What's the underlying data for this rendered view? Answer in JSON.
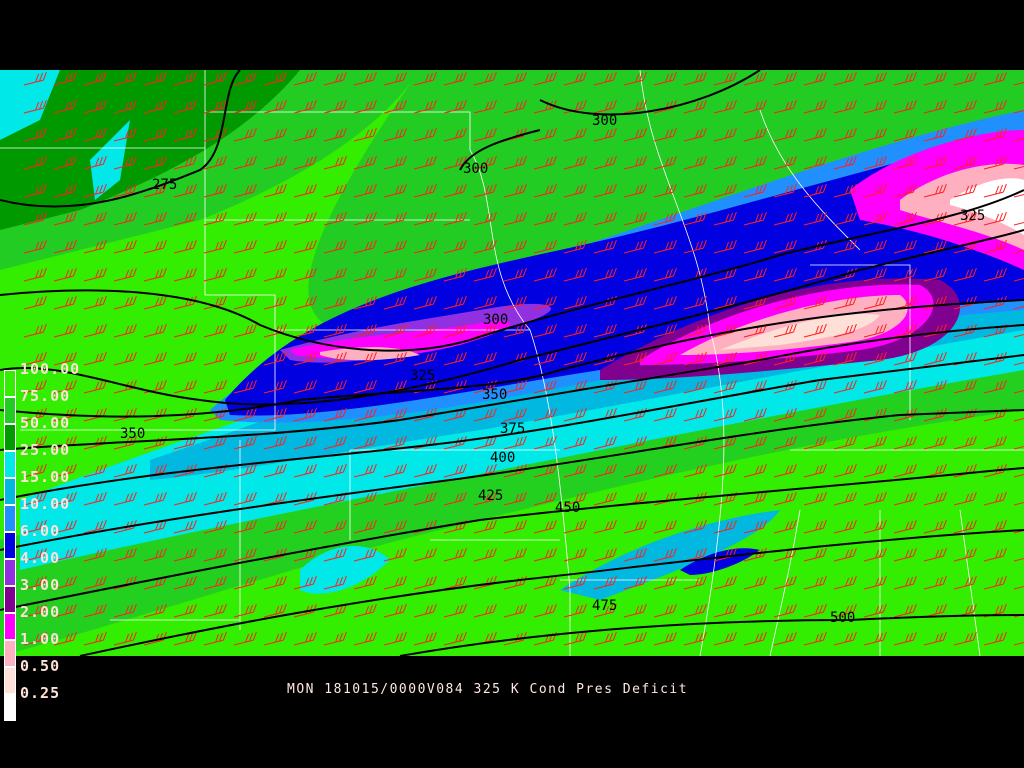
{
  "title": "MON 181015/0000V084 325 K Cond Pres Deficit",
  "legend": [
    {
      "label": "100.00",
      "color": "#33ee00"
    },
    {
      "label": "75.00",
      "color": "#22cc22"
    },
    {
      "label": "50.00",
      "color": "#009900"
    },
    {
      "label": "25.00",
      "color": "#00e8e8"
    },
    {
      "label": "15.00",
      "color": "#00b8e0"
    },
    {
      "label": "10.00",
      "color": "#2090ff"
    },
    {
      "label": "6.00",
      "color": "#0000e0"
    },
    {
      "label": "4.00",
      "color": "#9030e0"
    },
    {
      "label": "3.00",
      "color": "#800090"
    },
    {
      "label": "2.00",
      "color": "#ff00ff"
    },
    {
      "label": "1.00",
      "color": "#ffb0c0"
    },
    {
      "label": "0.50",
      "color": "#ffe0d8"
    },
    {
      "label": "0.25",
      "color": "#ffffff"
    }
  ],
  "contours": [
    "275",
    "300",
    "300",
    "300",
    "325",
    "325",
    "350",
    "350",
    "375",
    "400",
    "425",
    "450",
    "475",
    "500"
  ],
  "colors": {
    "barbs": "#ff2020",
    "contours": "#000000",
    "borders": "#ffffff"
  }
}
